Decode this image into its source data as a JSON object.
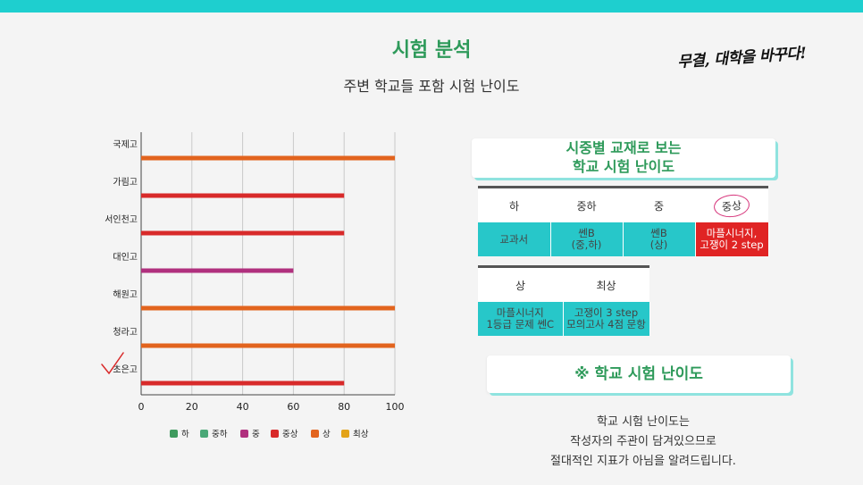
{
  "header": {
    "title": "시험 분석",
    "subtitle": "주변 학교들 포함 시험 난이도",
    "slogan": "무결, 대학을 바꾸다!"
  },
  "chart_data": {
    "type": "bar",
    "orientation": "horizontal",
    "categories": [
      "국제고",
      "가림고",
      "서인천고",
      "대인고",
      "해원고",
      "청라고",
      "초은고"
    ],
    "values": [
      100,
      80,
      80,
      60,
      100,
      100,
      80
    ],
    "level_labels": [
      "상",
      "중상",
      "중상",
      "중",
      "상",
      "상",
      "중상"
    ],
    "xlim": [
      0,
      100
    ],
    "xticks": [
      0,
      20,
      40,
      60,
      80,
      100
    ],
    "grid": true,
    "legend_position": "bottom",
    "legend": [
      {
        "name": "하",
        "color": "#3f9a5e"
      },
      {
        "name": "중하",
        "color": "#4aa877"
      },
      {
        "name": "중",
        "color": "#b0307e"
      },
      {
        "name": "중상",
        "color": "#d82a2a"
      },
      {
        "name": "상",
        "color": "#e2641e"
      },
      {
        "name": "최상",
        "color": "#e3a319"
      }
    ]
  },
  "panel": {
    "heading_line1": "시중별 교재로 보는",
    "heading_line2": "학교 시험 난이도",
    "table1": {
      "headers": [
        "하",
        "중하",
        "중",
        "중상"
      ],
      "cells": [
        [
          "교과서"
        ],
        [
          "쎈B",
          "(중,하)"
        ],
        [
          "쎈B",
          "(상)"
        ],
        [
          "마플시너지,",
          "고쟁이 2 step"
        ]
      ]
    },
    "table2": {
      "headers": [
        "상",
        "최상"
      ],
      "cells": [
        [
          "마플시너지",
          "1등급 문제 쎈C"
        ],
        [
          "고쟁이 3 step",
          "모의고사 4점 문항"
        ]
      ]
    },
    "section_title": "※ 학교 시험 난이도",
    "note_lines": [
      "학교 시험 난이도는",
      "작성자의 주관이 담겨있으므로",
      "절대적인 지표가 아님을 알려드립니다."
    ]
  }
}
